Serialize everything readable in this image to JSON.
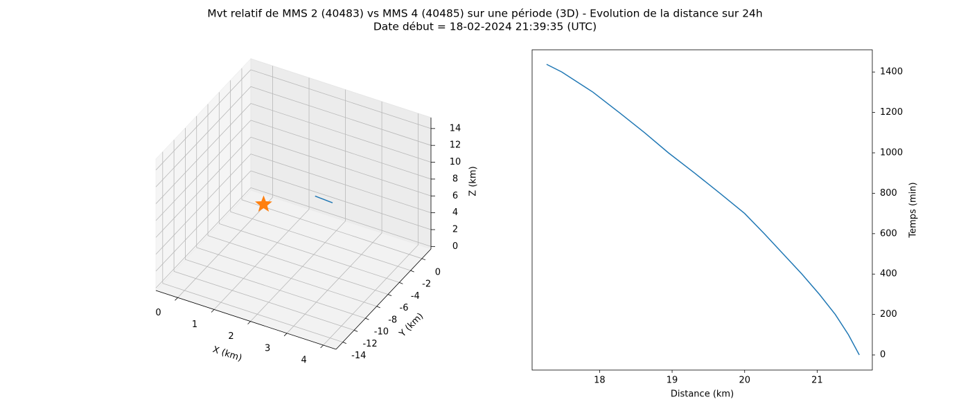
{
  "title": "Mvt relatif de MMS 2 (40483) vs MMS 4 (40485) sur une période (3D) - Evolution de la distance sur 24h",
  "subtitle": "Date début = 18-02-2024 21:39:35 (UTC)",
  "chart_data": [
    {
      "type": "line3d",
      "xlabel": "X (km)",
      "ylabel": "Y (km)",
      "zlabel": "Z (km)",
      "xlim": [
        -0.6,
        4.35
      ],
      "ylim": [
        -15.2,
        1.6
      ],
      "zlim": [
        -0.3,
        15.3
      ],
      "xticks": [
        0,
        1,
        2,
        3,
        4
      ],
      "yticks": [
        0,
        -2,
        -4,
        -6,
        -8,
        -10,
        -12,
        -14
      ],
      "zticks": [
        0,
        2,
        4,
        6,
        8,
        10,
        12,
        14
      ],
      "series": [
        {
          "color": "#1f77b4",
          "x": [
            1.43,
            1.55,
            1.67,
            1.79,
            1.91
          ],
          "y": [
            -0.1,
            -0.1,
            -0.1,
            -0.1,
            -0.1
          ],
          "z": [
            3.07,
            3.04,
            3.01,
            2.98,
            2.95
          ]
        }
      ],
      "marker": {
        "shape": "star",
        "color": "#ff7f0e",
        "x": 0,
        "y": 0,
        "z": 0
      }
    },
    {
      "type": "line",
      "xlabel": "Distance (km)",
      "ylabel": "Temps (min)",
      "xlim": [
        17.07,
        21.76
      ],
      "ylim": [
        -75,
        1510
      ],
      "xticks": [
        18,
        19,
        20,
        21
      ],
      "yticks": [
        0,
        200,
        400,
        600,
        800,
        1000,
        1200,
        1400
      ],
      "yaxis_side": "right",
      "x": [
        21.58,
        21.43,
        21.25,
        21.03,
        20.79,
        20.53,
        20.27,
        20.0,
        19.66,
        19.31,
        18.95,
        18.62,
        18.27,
        17.91,
        17.48,
        17.27
      ],
      "series": [
        {
          "color": "#1f77b4",
          "values": [
            0,
            100,
            200,
            300,
            400,
            500,
            600,
            700,
            800,
            900,
            1000,
            1100,
            1200,
            1300,
            1400,
            1438
          ]
        }
      ]
    }
  ]
}
